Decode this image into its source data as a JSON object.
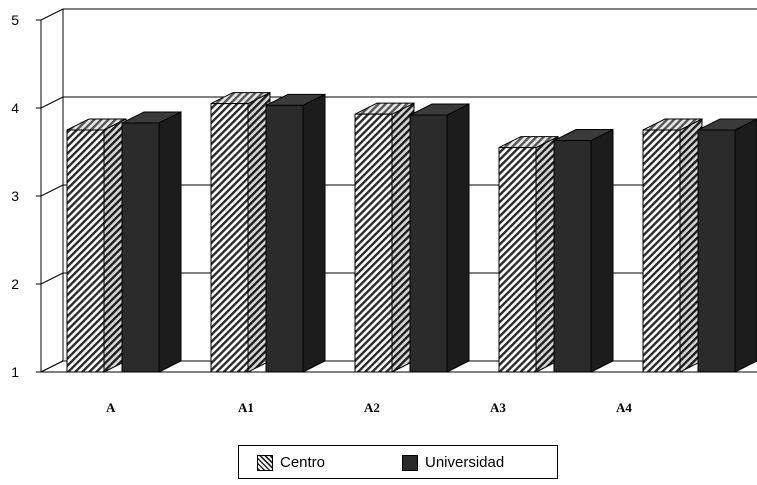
{
  "chart_data": {
    "type": "bar",
    "categories": [
      "A",
      "A1",
      "A2",
      "A3",
      "A4"
    ],
    "series": [
      {
        "name": "Centro",
        "values": [
          3.75,
          4.05,
          3.93,
          3.55,
          3.75
        ],
        "fill": "hatched"
      },
      {
        "name": "Universidad",
        "values": [
          3.83,
          4.03,
          3.92,
          3.63,
          3.75
        ],
        "fill": "#2b2b2b"
      }
    ],
    "ylim": [
      1,
      5
    ],
    "yticks": [
      "1",
      "2",
      "3",
      "4",
      "5"
    ],
    "grid": true,
    "legend_position": "bottom",
    "style": "3d"
  },
  "legend": {
    "centro_label": "Centro",
    "universidad_label": "Universidad"
  }
}
